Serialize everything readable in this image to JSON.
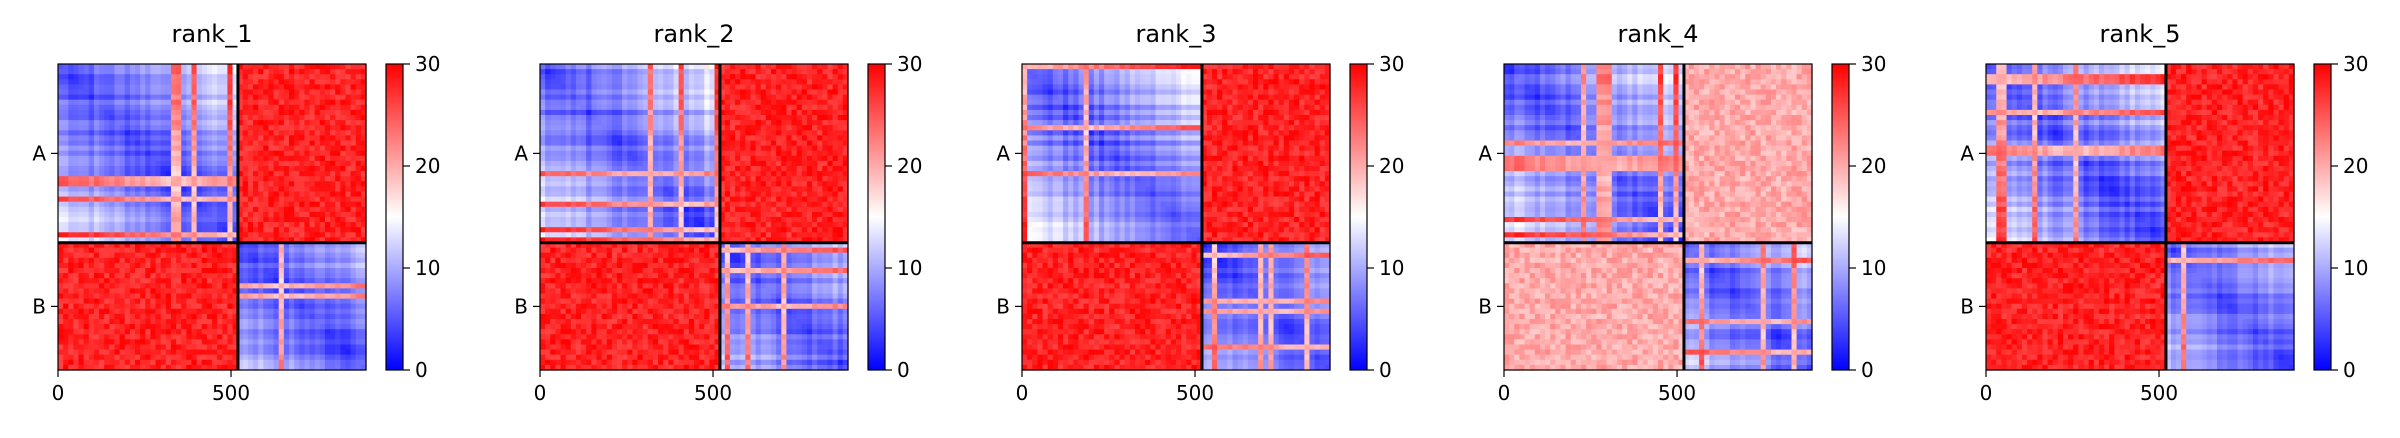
{
  "chart_data": [
    {
      "type": "heatmap",
      "title": "rank_1",
      "xticks": [
        "0",
        "500"
      ],
      "yticks": [
        "A",
        "B"
      ],
      "colorbar_ticks": [
        "0",
        "10",
        "20",
        "30"
      ],
      "colorbar_range": [
        0,
        30
      ],
      "colormap": "bwr",
      "chain_lengths": {
        "A": 520,
        "B": 370
      },
      "offdiag_pae_value": 28
    },
    {
      "type": "heatmap",
      "title": "rank_2",
      "xticks": [
        "0",
        "500"
      ],
      "yticks": [
        "A",
        "B"
      ],
      "colorbar_ticks": [
        "0",
        "10",
        "20",
        "30"
      ],
      "colorbar_range": [
        0,
        30
      ],
      "colormap": "bwr",
      "chain_lengths": {
        "A": 520,
        "B": 370
      },
      "offdiag_pae_value": 28
    },
    {
      "type": "heatmap",
      "title": "rank_3",
      "xticks": [
        "0",
        "500"
      ],
      "yticks": [
        "A",
        "B"
      ],
      "colorbar_ticks": [
        "0",
        "10",
        "20",
        "30"
      ],
      "colorbar_range": [
        0,
        30
      ],
      "colormap": "bwr",
      "chain_lengths": {
        "A": 520,
        "B": 370
      },
      "offdiag_pae_value": 28
    },
    {
      "type": "heatmap",
      "title": "rank_4",
      "xticks": [
        "0",
        "500"
      ],
      "yticks": [
        "A",
        "B"
      ],
      "colorbar_ticks": [
        "0",
        "10",
        "20",
        "30"
      ],
      "colorbar_range": [
        0,
        30
      ],
      "colormap": "bwr",
      "chain_lengths": {
        "A": 520,
        "B": 370
      },
      "offdiag_pae_value": 20
    },
    {
      "type": "heatmap",
      "title": "rank_5",
      "xticks": [
        "0",
        "500"
      ],
      "yticks": [
        "A",
        "B"
      ],
      "colorbar_ticks": [
        "0",
        "10",
        "20",
        "30"
      ],
      "colorbar_range": [
        0,
        30
      ],
      "colormap": "bwr",
      "chain_lengths": {
        "A": 520,
        "B": 370
      },
      "offdiag_pae_value": 28
    }
  ],
  "colors": {
    "low": "#0000ff",
    "mid": "#ffffff",
    "high": "#ff0000"
  }
}
